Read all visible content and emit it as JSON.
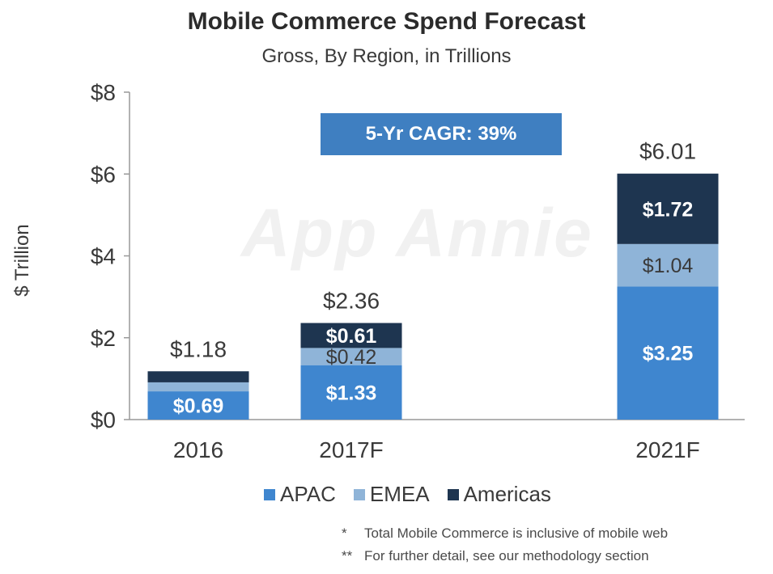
{
  "title": "Mobile Commerce Spend Forecast",
  "subtitle": "Gross, By Region, in Trillions",
  "cagr_label": "5-Yr CAGR: 39%",
  "watermark": "App Annie",
  "footnotes": [
    {
      "mark": "*",
      "text": "Total Mobile Commerce is inclusive of mobile web"
    },
    {
      "mark": "**",
      "text": "For further detail, see our methodology section"
    }
  ],
  "colors": {
    "APAC": "#3f86cf",
    "EMEA": "#8fb4d8",
    "Americas": "#1e3550"
  },
  "chart_data": {
    "type": "bar",
    "stacked": true,
    "title": "Mobile Commerce Spend Forecast",
    "subtitle": "Gross, By Region, in Trillions",
    "xlabel": "",
    "ylabel": "$ Trillion",
    "ylim": [
      0,
      8
    ],
    "yticks": [
      {
        "value": 0,
        "label": "$0"
      },
      {
        "value": 2,
        "label": "$2"
      },
      {
        "value": 4,
        "label": "$4"
      },
      {
        "value": 6,
        "label": "$6"
      },
      {
        "value": 8,
        "label": "$8"
      }
    ],
    "categories": [
      "2016",
      "2017F",
      "2021F"
    ],
    "totals": [
      "$1.18",
      "$2.36",
      "$6.01"
    ],
    "total_values": [
      1.18,
      2.36,
      6.01
    ],
    "series": [
      {
        "name": "APAC",
        "values": [
          0.69,
          1.33,
          3.25
        ],
        "labels": [
          "$0.69",
          "$1.33",
          "$3.25"
        ]
      },
      {
        "name": "EMEA",
        "values": [
          0.22,
          0.42,
          1.04
        ],
        "labels": [
          "",
          "$0.42",
          "$1.04"
        ]
      },
      {
        "name": "Americas",
        "values": [
          0.27,
          0.61,
          1.72
        ],
        "labels": [
          "",
          "$0.61",
          "$1.72"
        ]
      }
    ],
    "legend": [
      "APAC",
      "EMEA",
      "Americas"
    ],
    "legend_position": "bottom",
    "grid": false
  }
}
